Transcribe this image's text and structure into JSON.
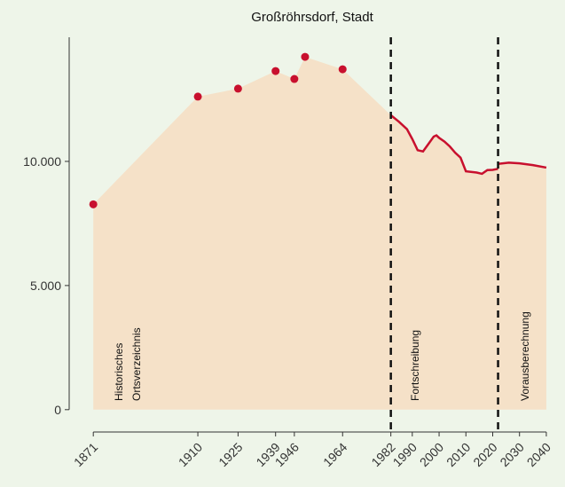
{
  "chart_data": {
    "type": "line",
    "title": "Großröhrsdorf, Stadt",
    "series": [
      {
        "kind": "points",
        "color": "#c8102e",
        "x": [
          1871,
          1910,
          1925,
          1939,
          1946,
          1950,
          1964
        ],
        "values": [
          8270,
          12610,
          12930,
          13640,
          13320,
          14210,
          13710
        ]
      },
      {
        "kind": "line",
        "color": "#c8102e",
        "x": [
          1982,
          1985,
          1988,
          1990,
          1992,
          1994,
          1996,
          1998,
          1999,
          2000,
          2002,
          2004,
          2006,
          2008,
          2010,
          2014,
          2016,
          2018,
          2020,
          2022
        ],
        "values": [
          11860,
          11600,
          11300,
          10900,
          10450,
          10400,
          10700,
          11000,
          11050,
          10950,
          10800,
          10600,
          10350,
          10150,
          9600,
          9550,
          9500,
          9650,
          9660,
          9700
        ]
      },
      {
        "kind": "line",
        "color": "#c8102e",
        "x": [
          2022,
          2026,
          2030,
          2035,
          2040
        ],
        "values": [
          9900,
          9950,
          9920,
          9850,
          9750
        ]
      }
    ],
    "area_color": "#f5e1c8",
    "xlim": [
      1862,
      2043
    ],
    "ylim": [
      -900,
      15000
    ],
    "xticks": [
      1871,
      1910,
      1925,
      1939,
      1946,
      1964,
      1982,
      1990,
      2000,
      2010,
      2020,
      2030,
      2040
    ],
    "yticks": [
      0,
      {
        "value": 5000,
        "label": "5.000"
      },
      {
        "value": 10000,
        "label": "10.000"
      }
    ],
    "vlines": [
      1982,
      2022
    ],
    "annotations": [
      "Historisches",
      "Ortsverzeichnis",
      "Fortschreibung",
      "Vorausberechnung"
    ]
  }
}
